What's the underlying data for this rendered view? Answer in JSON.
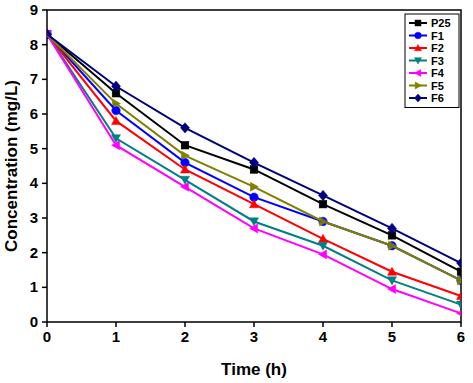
{
  "chart_data": {
    "type": "line",
    "x_label": "Time (h)",
    "y_label": "Concentration (mg/L)",
    "x": [
      0,
      1,
      2,
      3,
      4,
      5,
      6
    ],
    "xlim": [
      0,
      6
    ],
    "xticks": [
      0,
      1,
      2,
      3,
      4,
      5,
      6
    ],
    "ylim": [
      0,
      9
    ],
    "yticks": [
      0,
      1,
      2,
      3,
      4,
      5,
      6,
      7,
      8,
      9
    ],
    "grid": false,
    "legend": "top-right",
    "series": [
      {
        "name": "P25",
        "color": "#000000",
        "marker": "square",
        "values": [
          8.3,
          6.6,
          5.1,
          4.4,
          3.4,
          2.5,
          1.45
        ]
      },
      {
        "name": "F1",
        "color": "#0000ff",
        "marker": "circle",
        "values": [
          8.3,
          6.1,
          4.6,
          3.6,
          2.9,
          2.2,
          1.2
        ]
      },
      {
        "name": "F2",
        "color": "#ff0000",
        "marker": "triangle-up",
        "values": [
          8.3,
          5.8,
          4.4,
          3.4,
          2.4,
          1.45,
          0.75
        ]
      },
      {
        "name": "F3",
        "color": "#008080",
        "marker": "triangle-down",
        "values": [
          8.3,
          5.3,
          4.1,
          2.9,
          2.2,
          1.2,
          0.5
        ]
      },
      {
        "name": "F4",
        "color": "#ff00ff",
        "marker": "triangle-left",
        "values": [
          8.3,
          5.1,
          3.9,
          2.7,
          1.95,
          0.95,
          0.25
        ]
      },
      {
        "name": "F5",
        "color": "#808000",
        "marker": "triangle-right",
        "values": [
          8.3,
          6.3,
          4.8,
          3.9,
          2.9,
          2.2,
          1.2
        ]
      },
      {
        "name": "F6",
        "color": "#000080",
        "marker": "diamond",
        "values": [
          8.3,
          6.8,
          5.6,
          4.6,
          3.65,
          2.7,
          1.7
        ]
      }
    ]
  }
}
